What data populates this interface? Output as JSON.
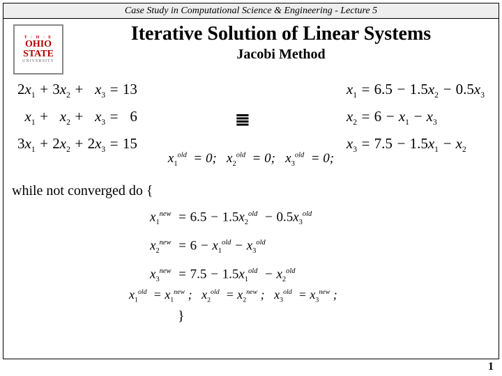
{
  "header": "Case Study in Computational Science & Engineering - Lecture 5",
  "logo": {
    "top": "T · H · E",
    "midTop": "OHIO",
    "midBot": "STATE",
    "bottom": "UNIVERSITY"
  },
  "title": {
    "main": "Iterative Solution of Linear Systems",
    "sub": "Jacobi Method"
  },
  "system": {
    "r1": "2x₁ + 3x₂ +   x₃ = 13",
    "r2": "  x₁ +   x₂ +   x₃ =   6",
    "r3": "3x₁ + 2x₂ + 2x₃ = 15"
  },
  "solved": {
    "r1": "x₁ = 6.5 − 1.5x₂ − 0.5x₃",
    "r2": "x₂ = 6 − x₁ − x₃",
    "r3": "x₃ = 7.5 − 1.5x₁ − x₂"
  },
  "equiv_symbol": "≣",
  "init": {
    "prefix": "x",
    "sup": "old",
    "val": "= 0;"
  },
  "while_text": "while not converged do {",
  "iter": {
    "r1": {
      "lhs_sub": "1",
      "rhs": "= 6.5 − 1.5",
      "t2_sub": "2",
      "mid": " − 0.5",
      "t3_sub": "3"
    },
    "r2": {
      "lhs_sub": "2",
      "rhs": "= 6 − ",
      "t2_sub": "1",
      "mid": " − ",
      "t3_sub": "3"
    },
    "r3": {
      "lhs_sub": "3",
      "rhs": "= 7.5 − 1.5",
      "t2_sub": "1",
      "mid": " − ",
      "t3_sub": "2"
    }
  },
  "assign_sep": ";   ",
  "close_brace": "}",
  "page": "1",
  "colors": {
    "bg": "#ffffff",
    "border": "#000000",
    "headerbg": "#eeeeee",
    "logo_red": "#b00000"
  },
  "fonts": {
    "title_pt": 28,
    "sub_pt": 20,
    "body_pt": 20,
    "math_pt": 21
  }
}
